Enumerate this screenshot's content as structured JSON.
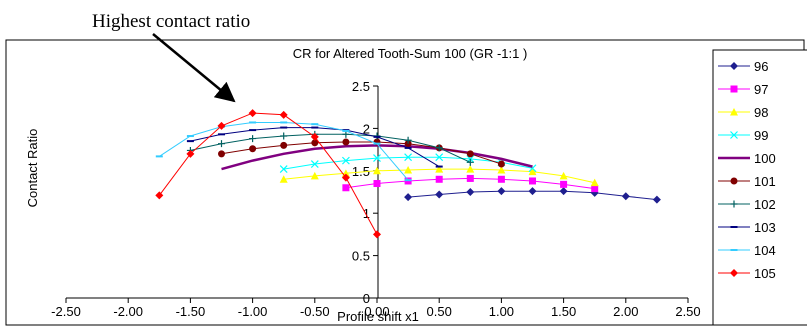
{
  "annotation": {
    "text": "Highest contact ratio"
  },
  "chart_data": {
    "type": "line",
    "title": "CR for Altered Tooth-Sum 100 (GR -1:1 )",
    "xlabel": "Profile shift x1",
    "ylabel": "Contact Ratio",
    "xlim": [
      -2.5,
      2.5
    ],
    "ylim": [
      0,
      2.5
    ],
    "x_ticks": [
      "-2.50",
      "-2.00",
      "-1.50",
      "-1.00",
      "-0.50",
      "0.00",
      "0.50",
      "1.00",
      "1.50",
      "2.00",
      "2.50"
    ],
    "y_ticks": [
      "0",
      "0.5",
      "1",
      "1.5",
      "2",
      "2.5"
    ],
    "grid": false,
    "legend": "right",
    "series": [
      {
        "name": "96",
        "color": "#1f1f8f",
        "marker": "diamond",
        "x": [
          0.25,
          0.5,
          0.75,
          1.0,
          1.25,
          1.5,
          1.75,
          2.0,
          2.25
        ],
        "y": [
          1.19,
          1.22,
          1.25,
          1.26,
          1.26,
          1.26,
          1.24,
          1.2,
          1.16
        ]
      },
      {
        "name": "97",
        "color": "#ff00ff",
        "marker": "square",
        "x": [
          -0.25,
          0.0,
          0.25,
          0.5,
          0.75,
          1.0,
          1.25,
          1.5,
          1.75
        ],
        "y": [
          1.3,
          1.35,
          1.38,
          1.4,
          1.41,
          1.4,
          1.38,
          1.34,
          1.29
        ]
      },
      {
        "name": "98",
        "color": "#ffff00",
        "marker": "triangle",
        "x": [
          -0.75,
          -0.5,
          -0.25,
          0.0,
          0.25,
          0.5,
          0.75,
          1.0,
          1.25,
          1.5,
          1.75
        ],
        "y": [
          1.4,
          1.44,
          1.47,
          1.5,
          1.51,
          1.52,
          1.52,
          1.51,
          1.49,
          1.44,
          1.36
        ]
      },
      {
        "name": "99",
        "color": "#00ffff",
        "marker": "x",
        "x": [
          -0.75,
          -0.5,
          -0.25,
          0.0,
          0.25,
          0.5,
          0.75,
          1.0,
          1.25
        ],
        "y": [
          1.52,
          1.58,
          1.62,
          1.65,
          1.66,
          1.66,
          1.64,
          1.6,
          1.53
        ]
      },
      {
        "name": "100",
        "color": "#800080",
        "marker": "none",
        "thick": true,
        "x": [
          -1.25,
          -1.0,
          -0.75,
          -0.5,
          -0.25,
          0.0,
          0.25,
          0.5,
          0.75,
          1.0,
          1.25
        ],
        "y": [
          1.52,
          1.62,
          1.7,
          1.76,
          1.79,
          1.8,
          1.79,
          1.76,
          1.71,
          1.64,
          1.55
        ]
      },
      {
        "name": "101",
        "color": "#800000",
        "marker": "circle",
        "x": [
          -1.25,
          -1.0,
          -0.75,
          -0.5,
          -0.25,
          0.0,
          0.25,
          0.5,
          0.75,
          1.0
        ],
        "y": [
          1.7,
          1.76,
          1.8,
          1.83,
          1.84,
          1.84,
          1.82,
          1.77,
          1.7,
          1.58
        ]
      },
      {
        "name": "102",
        "color": "#006060",
        "marker": "plus",
        "x": [
          -1.5,
          -1.25,
          -1.0,
          -0.75,
          -0.5,
          -0.25,
          0.0,
          0.25,
          0.5,
          0.75
        ],
        "y": [
          1.74,
          1.82,
          1.88,
          1.91,
          1.93,
          1.93,
          1.91,
          1.86,
          1.77,
          1.6
        ]
      },
      {
        "name": "103",
        "color": "#000080",
        "marker": "dash",
        "x": [
          -1.5,
          -1.25,
          -1.0,
          -0.75,
          -0.5,
          -0.25,
          0.0,
          0.25,
          0.5
        ],
        "y": [
          1.85,
          1.93,
          1.98,
          2.01,
          2.01,
          1.98,
          1.9,
          1.77,
          1.55
        ]
      },
      {
        "name": "104",
        "color": "#33ccff",
        "marker": "dash",
        "x": [
          -1.75,
          -1.5,
          -1.25,
          -1.0,
          -0.75,
          -0.5,
          -0.25,
          0.0,
          0.25
        ],
        "y": [
          1.67,
          1.91,
          2.02,
          2.07,
          2.07,
          2.05,
          1.97,
          1.82,
          1.39
        ]
      },
      {
        "name": "105",
        "color": "#ff0000",
        "marker": "diamond",
        "x": [
          -1.75,
          -1.5,
          -1.25,
          -1.0,
          -0.75,
          -0.5,
          -0.25,
          0.0
        ],
        "y": [
          1.21,
          1.7,
          2.03,
          2.18,
          2.16,
          1.9,
          1.42,
          0.75
        ]
      }
    ]
  }
}
